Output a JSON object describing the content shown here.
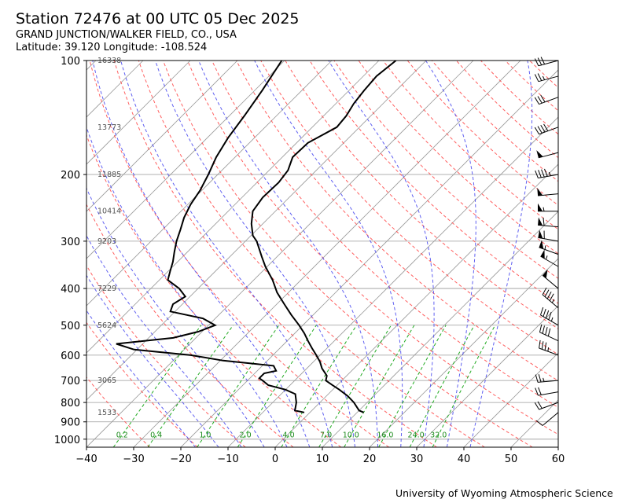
{
  "header": {
    "title": "Station 72476 at 00 UTC 05 Dec 2025",
    "subtitle": "GRAND JUNCTION/WALKER FIELD, CO., USA",
    "coords": "Latitude: 39.120 Longitude: -108.524"
  },
  "footer": {
    "credit": "University of Wyoming Atmospheric Science"
  },
  "chart_data": {
    "type": "line",
    "title": "Station 72476 at 00 UTC 05 Dec 2025",
    "xlabel": "",
    "ylabel": "",
    "x_log_scale": false,
    "y_log_scale": true,
    "y_inverted": true,
    "xlim": [
      -40,
      60
    ],
    "ylim": [
      1050,
      100
    ],
    "x_ticks": [
      -40,
      -30,
      -20,
      -10,
      0,
      10,
      20,
      30,
      40,
      50,
      60
    ],
    "y_ticks": [
      100,
      200,
      300,
      400,
      500,
      600,
      700,
      800,
      900,
      1000
    ],
    "skew": true,
    "height_labels": [
      {
        "p": 100,
        "label": "16338"
      },
      {
        "p": 150,
        "label": "13773"
      },
      {
        "p": 200,
        "label": "11885"
      },
      {
        "p": 250,
        "label": "10414"
      },
      {
        "p": 300,
        "label": "9203"
      },
      {
        "p": 400,
        "label": "7229"
      },
      {
        "p": 500,
        "label": "5624"
      },
      {
        "p": 700,
        "label": "3065"
      },
      {
        "p": 850,
        "label": "1533"
      }
    ],
    "mixing_ratio_labels": [
      "0.2",
      "0.4",
      "1.0",
      "2.0",
      "4.0",
      "7.0",
      "10.0",
      "16.0",
      "24.0",
      "32.0"
    ],
    "mixing_ratios": [
      0.2,
      0.4,
      1.0,
      2.0,
      4.0,
      7.0,
      10.0,
      16.0,
      24.0,
      32.0
    ],
    "series": [
      {
        "color": "#000000",
        "p": [
          850,
          840,
          800,
          770,
          740,
          720,
          700,
          680,
          650,
          625,
          600,
          575,
          550,
          525,
          500,
          470,
          440,
          410,
          380,
          350,
          330,
          300,
          290,
          270,
          250,
          230,
          210,
          195,
          180,
          165,
          150,
          140,
          130,
          120,
          110,
          100
        ],
        "t": [
          11.4,
          10.0,
          7.2,
          4.6,
          1.4,
          -1.0,
          -3.4,
          -4.2,
          -6.8,
          -8.6,
          -10.8,
          -13.2,
          -15.6,
          -18.0,
          -20.8,
          -24.6,
          -28.4,
          -32.4,
          -36.0,
          -40.4,
          -43.2,
          -47.6,
          -49.6,
          -52.4,
          -54.8,
          -55.6,
          -55.4,
          -56.0,
          -57.8,
          -57.6,
          -54.8,
          -55.2,
          -56.2,
          -56.8,
          -57.2,
          -56.4
        ]
      },
      {
        "color": "#000000",
        "p": [
          850,
          840,
          800,
          760,
          740,
          720,
          700,
          690,
          670,
          660,
          640,
          620,
          600,
          580,
          560,
          540,
          520,
          500,
          480,
          460,
          440,
          420,
          400,
          380,
          360,
          340,
          320,
          300,
          280,
          260,
          240,
          220,
          200,
          180,
          160,
          140,
          120,
          100
        ],
        "td": [
          -1.2,
          -3.6,
          -5.0,
          -7.0,
          -10.0,
          -14.6,
          -16.8,
          -18.0,
          -18.0,
          -16.0,
          -17.6,
          -29.4,
          -37.4,
          -50.6,
          -55.6,
          -44.8,
          -40.8,
          -38.6,
          -42.6,
          -51.0,
          -52.0,
          -51.0,
          -54.0,
          -58.2,
          -59.6,
          -61.0,
          -62.8,
          -64.6,
          -66.2,
          -68.0,
          -69.4,
          -70.4,
          -72.0,
          -74.0,
          -75.6,
          -76.8,
          -78.4,
          -80.6
        ]
      }
    ],
    "wind_barbs": [
      {
        "p": 850,
        "dir": 230,
        "kt": 10
      },
      {
        "p": 800,
        "dir": 250,
        "kt": 20
      },
      {
        "p": 750,
        "dir": 260,
        "kt": 20
      },
      {
        "p": 700,
        "dir": 265,
        "kt": 25
      },
      {
        "p": 600,
        "dir": 290,
        "kt": 35
      },
      {
        "p": 550,
        "dir": 295,
        "kt": 40
      },
      {
        "p": 500,
        "dir": 300,
        "kt": 45
      },
      {
        "p": 450,
        "dir": 310,
        "kt": 45
      },
      {
        "p": 400,
        "dir": 310,
        "kt": 50
      },
      {
        "p": 350,
        "dir": 300,
        "kt": 55
      },
      {
        "p": 325,
        "dir": 290,
        "kt": 55
      },
      {
        "p": 300,
        "dir": 280,
        "kt": 60
      },
      {
        "p": 275,
        "dir": 275,
        "kt": 60
      },
      {
        "p": 250,
        "dir": 270,
        "kt": 55
      },
      {
        "p": 225,
        "dir": 265,
        "kt": 50
      },
      {
        "p": 200,
        "dir": 260,
        "kt": 45
      },
      {
        "p": 175,
        "dir": 255,
        "kt": 50
      },
      {
        "p": 150,
        "dir": 250,
        "kt": 40
      },
      {
        "p": 125,
        "dir": 250,
        "kt": 30
      },
      {
        "p": 110,
        "dir": 255,
        "kt": 25
      },
      {
        "p": 100,
        "dir": 255,
        "kt": 30
      }
    ],
    "colors": {
      "temperature": "#000000",
      "dewpoint": "#000000",
      "dry_adiabat": "#ff4444",
      "moist_adiabat": "#4444ee",
      "mixing_ratio": "#22aa22",
      "isotherm": "#999999"
    }
  }
}
